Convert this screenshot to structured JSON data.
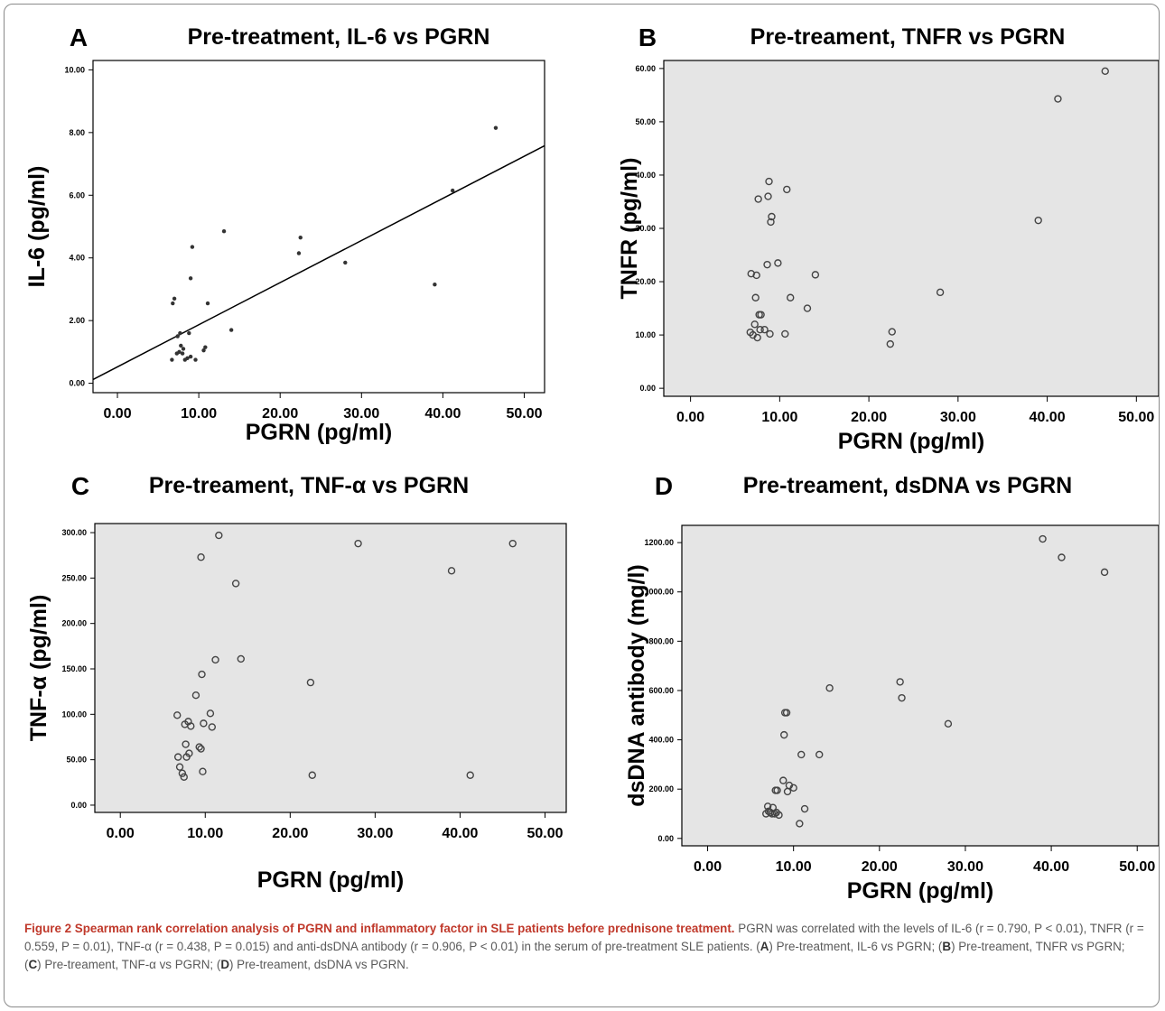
{
  "chart_data": [
    {
      "panel_letter": "A",
      "type": "scatter",
      "title": "Pre-treatment, IL-6 vs PGRN",
      "xlabel": "PGRN (pg/ml)",
      "ylabel": "IL-6 (pg/ml)",
      "xlim": [
        -3,
        52.5
      ],
      "ylim": [
        -0.3,
        10.3
      ],
      "xticks": [
        "0.00",
        "10.00",
        "20.00",
        "30.00",
        "40.00",
        "50.00"
      ],
      "yticks": [
        "0.00",
        "2.00",
        "4.00",
        "6.00",
        "8.00",
        "10.00"
      ],
      "grid": false,
      "background": "#ffffff",
      "marker": "dot",
      "fit_line": {
        "x": [
          -3,
          52.5
        ],
        "y": [
          0.12,
          7.58
        ]
      },
      "points": [
        [
          6.7,
          0.75
        ],
        [
          6.8,
          2.55
        ],
        [
          7.0,
          2.7
        ],
        [
          7.3,
          0.95
        ],
        [
          7.4,
          1.5
        ],
        [
          7.6,
          1.0
        ],
        [
          7.7,
          1.6
        ],
        [
          7.8,
          1.2
        ],
        [
          8.0,
          0.95
        ],
        [
          8.1,
          1.1
        ],
        [
          8.3,
          0.75
        ],
        [
          8.6,
          0.8
        ],
        [
          8.8,
          1.6
        ],
        [
          9.0,
          0.85
        ],
        [
          9.0,
          3.35
        ],
        [
          9.2,
          4.35
        ],
        [
          9.6,
          0.75
        ],
        [
          10.6,
          1.05
        ],
        [
          10.8,
          1.15
        ],
        [
          11.1,
          2.55
        ],
        [
          13.1,
          4.85
        ],
        [
          14.0,
          1.7
        ],
        [
          22.3,
          4.15
        ],
        [
          22.5,
          4.65
        ],
        [
          28.0,
          3.85
        ],
        [
          39.0,
          3.15
        ],
        [
          41.2,
          6.15
        ],
        [
          46.5,
          8.15
        ]
      ]
    },
    {
      "panel_letter": "B",
      "type": "scatter",
      "title": "Pre-treament, TNFR vs PGRN",
      "xlabel": "PGRN (pg/ml)",
      "ylabel": "TNFR (pg/ml)",
      "xlim": [
        -3,
        52.5
      ],
      "ylim": [
        -1.5,
        61.5
      ],
      "xticks": [
        "0.00",
        "10.00",
        "20.00",
        "30.00",
        "40.00",
        "50.00"
      ],
      "yticks": [
        "0.00",
        "10.00",
        "20.00",
        "30.00",
        "40.00",
        "50.00",
        "60.00"
      ],
      "grid": false,
      "background": "#e5e5e5",
      "marker": "circle",
      "points": [
        [
          6.7,
          10.5
        ],
        [
          6.8,
          21.5
        ],
        [
          7.0,
          10.0
        ],
        [
          7.2,
          12.0
        ],
        [
          7.3,
          17.0
        ],
        [
          7.4,
          21.2
        ],
        [
          7.5,
          9.5
        ],
        [
          7.7,
          13.8
        ],
        [
          7.8,
          11.0
        ],
        [
          7.9,
          13.8
        ],
        [
          7.6,
          35.5
        ],
        [
          8.3,
          11.0
        ],
        [
          8.6,
          23.2
        ],
        [
          8.7,
          36.0
        ],
        [
          8.8,
          38.8
        ],
        [
          8.9,
          10.2
        ],
        [
          9.0,
          31.2
        ],
        [
          9.1,
          32.2
        ],
        [
          9.8,
          23.5
        ],
        [
          10.6,
          10.2
        ],
        [
          10.8,
          37.3
        ],
        [
          11.2,
          17.0
        ],
        [
          13.1,
          15.0
        ],
        [
          14.0,
          21.3
        ],
        [
          22.4,
          8.3
        ],
        [
          22.6,
          10.6
        ],
        [
          28.0,
          18.0
        ],
        [
          39.0,
          31.5
        ],
        [
          41.2,
          54.3
        ],
        [
          46.5,
          59.5
        ]
      ]
    },
    {
      "panel_letter": "C",
      "type": "scatter",
      "title": "Pre-treament, TNF-α vs PGRN",
      "xlabel": "PGRN (pg/ml)",
      "ylabel": "TNF-α (pg/ml)",
      "xlim": [
        -3,
        52.5
      ],
      "ylim": [
        -8,
        310
      ],
      "xticks": [
        "0.00",
        "10.00",
        "20.00",
        "30.00",
        "40.00",
        "50.00"
      ],
      "yticks": [
        "0.00",
        "50.00",
        "100.00",
        "150.00",
        "200.00",
        "250.00",
        "300.00"
      ],
      "grid": false,
      "background": "#e5e5e5",
      "marker": "circle",
      "points": [
        [
          6.7,
          99
        ],
        [
          6.8,
          53
        ],
        [
          7.0,
          42
        ],
        [
          7.3,
          35
        ],
        [
          7.5,
          31
        ],
        [
          7.6,
          89
        ],
        [
          7.7,
          67
        ],
        [
          7.8,
          53
        ],
        [
          8.0,
          92
        ],
        [
          8.1,
          57
        ],
        [
          8.3,
          87
        ],
        [
          8.9,
          121
        ],
        [
          9.3,
          64
        ],
        [
          9.5,
          62
        ],
        [
          9.6,
          144
        ],
        [
          9.7,
          37
        ],
        [
          9.8,
          90
        ],
        [
          9.5,
          273
        ],
        [
          10.6,
          101
        ],
        [
          10.8,
          86
        ],
        [
          11.2,
          160
        ],
        [
          11.6,
          297
        ],
        [
          13.6,
          244
        ],
        [
          14.2,
          161
        ],
        [
          22.4,
          135
        ],
        [
          22.6,
          33
        ],
        [
          28.0,
          288
        ],
        [
          39.0,
          258
        ],
        [
          41.2,
          33
        ],
        [
          46.2,
          288
        ]
      ]
    },
    {
      "panel_letter": "D",
      "type": "scatter",
      "title": "Pre-treament, dsDNA vs PGRN",
      "xlabel": "PGRN (pg/ml)",
      "ylabel": "dsDNA antibody (mg/l)",
      "xlim": [
        -3,
        52.5
      ],
      "ylim": [
        -30,
        1270
      ],
      "xticks": [
        "0.00",
        "10.00",
        "20.00",
        "30.00",
        "40.00",
        "50.00"
      ],
      "yticks": [
        "0.00",
        "200.00",
        "400.00",
        "600.00",
        "800.00",
        "1000.00",
        "1200.00"
      ],
      "grid": false,
      "background": "#e5e5e5",
      "marker": "circle",
      "points": [
        [
          6.8,
          100
        ],
        [
          7.0,
          130
        ],
        [
          7.1,
          110
        ],
        [
          7.3,
          105
        ],
        [
          7.5,
          100
        ],
        [
          7.6,
          125
        ],
        [
          7.8,
          100
        ],
        [
          7.9,
          195
        ],
        [
          8.0,
          105
        ],
        [
          8.1,
          195
        ],
        [
          8.3,
          95
        ],
        [
          8.8,
          235
        ],
        [
          8.9,
          420
        ],
        [
          9.0,
          510
        ],
        [
          9.2,
          510
        ],
        [
          9.3,
          190
        ],
        [
          9.5,
          215
        ],
        [
          10.0,
          205
        ],
        [
          10.7,
          60
        ],
        [
          10.9,
          340
        ],
        [
          11.3,
          120
        ],
        [
          13.0,
          340
        ],
        [
          14.2,
          610
        ],
        [
          22.4,
          635
        ],
        [
          22.6,
          570
        ],
        [
          28.0,
          465
        ],
        [
          39.0,
          1215
        ],
        [
          41.2,
          1140
        ],
        [
          46.2,
          1080
        ]
      ]
    }
  ],
  "caption": {
    "title": "Figure 2 Spearman rank correlation analysis of PGRN and inflammatory factor in SLE patients before prednisone treatment.",
    "body": "PGRN was correlated with the levels of IL-6 (r = 0.790, P < 0.01), TNFR (r = 0.559, P = 0.01), TNF-α (r = 0.438, P = 0.015) and anti-dsDNA antibody (r = 0.906, P < 0.01) in the serum of pre-treatment SLE patients. (",
    "refs": [
      {
        "letter": "A",
        "text": ") Pre-treatment, IL-6 vs PGRN; ("
      },
      {
        "letter": "B",
        "text": ") Pre-treament, TNFR vs PGRN; ("
      },
      {
        "letter": "C",
        "text": ") Pre-treament, TNF-α vs PGRN; ("
      },
      {
        "letter": "D",
        "text": ") Pre-treament, dsDNA vs PGRN."
      }
    ]
  }
}
